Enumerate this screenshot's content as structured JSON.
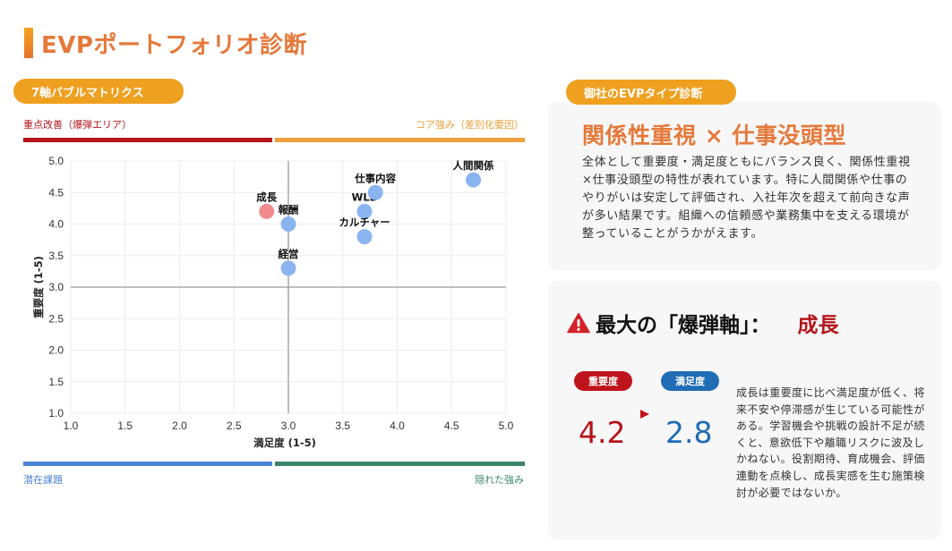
{
  "page": {
    "title": "EVPポートフォリオ診断"
  },
  "matrix": {
    "pill_label": "7軸バブルマトリクス",
    "quadrants": {
      "top_left": "重点改善（爆弾エリア）",
      "top_right": "コア強み（差別化要因）",
      "bottom_left": "潜在課題",
      "bottom_right": "隠れた強み"
    },
    "colors": {
      "top_left": "#B5141B",
      "top_right": "#EE9F41",
      "bottom_left": "#4A84D4",
      "bottom_right": "#3B8568",
      "bubble_normal": "#8AB4F0",
      "bubble_alert": "#F28B8E"
    }
  },
  "chart_data": {
    "type": "scatter",
    "title": "7軸バブルマトリクス",
    "xlabel": "満足度 (1-5)",
    "ylabel": "重要度 (1-5)",
    "xlim": [
      1.0,
      5.0
    ],
    "ylim": [
      1.0,
      5.0
    ],
    "xticks": [
      "1.0",
      "1.5",
      "2.0",
      "2.5",
      "3.0",
      "3.5",
      "4.0",
      "4.5",
      "5.0"
    ],
    "yticks": [
      "1.0",
      "1.5",
      "2.0",
      "2.5",
      "3.0",
      "3.5",
      "4.0",
      "4.5",
      "5.0"
    ],
    "grid": true,
    "reference_lines": {
      "x": 3.0,
      "y": 3.0
    },
    "points": [
      {
        "label": "成長",
        "x": 2.8,
        "y": 4.2,
        "highlight": true
      },
      {
        "label": "報酬",
        "x": 3.0,
        "y": 4.0,
        "highlight": false
      },
      {
        "label": "経営",
        "x": 3.0,
        "y": 3.3,
        "highlight": false
      },
      {
        "label": "WLB",
        "x": 3.7,
        "y": 4.2,
        "highlight": false
      },
      {
        "label": "カルチャー",
        "x": 3.7,
        "y": 3.8,
        "highlight": false
      },
      {
        "label": "仕事内容",
        "x": 3.8,
        "y": 4.5,
        "highlight": false
      },
      {
        "label": "人間関係",
        "x": 4.7,
        "y": 4.7,
        "highlight": false
      }
    ]
  },
  "evp_type": {
    "pill_label": "御社のEVPタイプ診断",
    "title": "関係性重視 × 仕事没頭型",
    "description": "全体として重要度・満足度ともにバランス良く、関係性重視×仕事没頭型の特性が表れています。特に人間関係や仕事のやりがいは安定して評価され、入社年次を超えて前向きな声が多い結果です。組織への信頼感や業務集中を支える環境が整っていることがうかがえます。"
  },
  "bomb_axis": {
    "title_prefix": "最大の「爆弾軸」：",
    "axis_name": "成長",
    "importance_label": "重要度",
    "importance_value": "4.2",
    "satisfaction_label": "満足度",
    "satisfaction_value": "2.8",
    "description": "成長は重要度に比べ満足度が低く、将来不安や停滞感が生じている可能性がある。学習機会や挑戦の設計不足が続くと、意欲低下や離職リスクに波及しかねない。役割期待、育成機会、評価連動を点検し、成長実感を生む施策検討が必要ではないか。"
  }
}
